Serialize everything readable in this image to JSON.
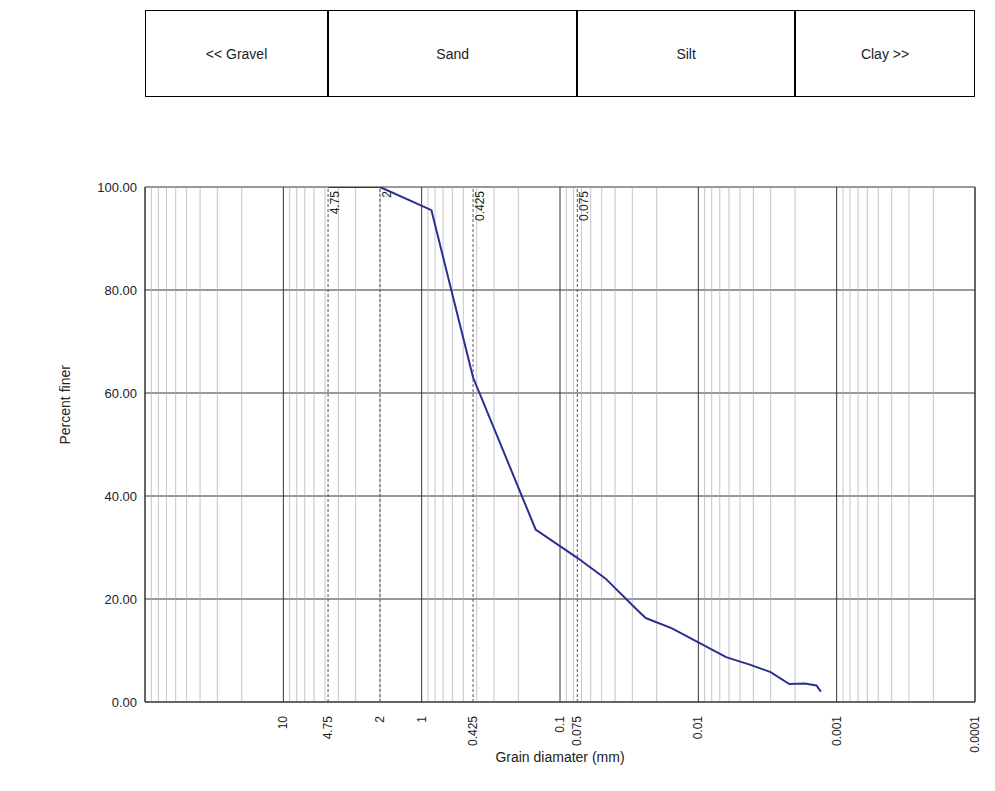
{
  "chart_data": {
    "type": "line",
    "x_label": "Grain diamater (mm)",
    "y_label": "Percent finer",
    "log": "x",
    "grid": true,
    "xlim": [
      100,
      0.0001
    ],
    "xticks": [
      10,
      1,
      0.1,
      0.01,
      0.001,
      0.0001
    ],
    "ylim": [
      0,
      100
    ],
    "yticks": [
      {
        "value": 0,
        "label": "0.00"
      },
      {
        "value": 20,
        "label": "20.00"
      },
      {
        "value": 40,
        "label": "40.00"
      },
      {
        "value": 60,
        "label": "60.00"
      },
      {
        "value": 80,
        "label": "80.00"
      },
      {
        "value": 100,
        "label": "100.00"
      }
    ],
    "color": "#2b2f8f",
    "x": [
      4.75,
      2,
      0.85,
      0.425,
      0.15,
      0.075,
      0.047,
      0.028,
      0.024,
      0.0155,
      0.01,
      0.0063,
      0.0042,
      0.003,
      0.0022,
      0.0017,
      0.0014,
      0.0013
    ],
    "values": [
      100,
      100,
      95.5,
      63,
      33.5,
      28,
      24,
      18,
      16.3,
      14.3,
      11.6,
      8.7,
      7.2,
      5.8,
      3.5,
      3.6,
      3.2,
      2
    ],
    "sieves": [
      4.75,
      2,
      0.425,
      0.075
    ],
    "soil_classes": [
      {
        "name": "<< Gravel",
        "from": 100,
        "to": 4.75
      },
      {
        "name": "Sand",
        "from": 4.75,
        "to": 0.075
      },
      {
        "name": "Silt",
        "from": 0.075,
        "to": 0.002
      },
      {
        "name": "Clay >>",
        "from": 0.002,
        "to": 0.0001
      }
    ]
  }
}
